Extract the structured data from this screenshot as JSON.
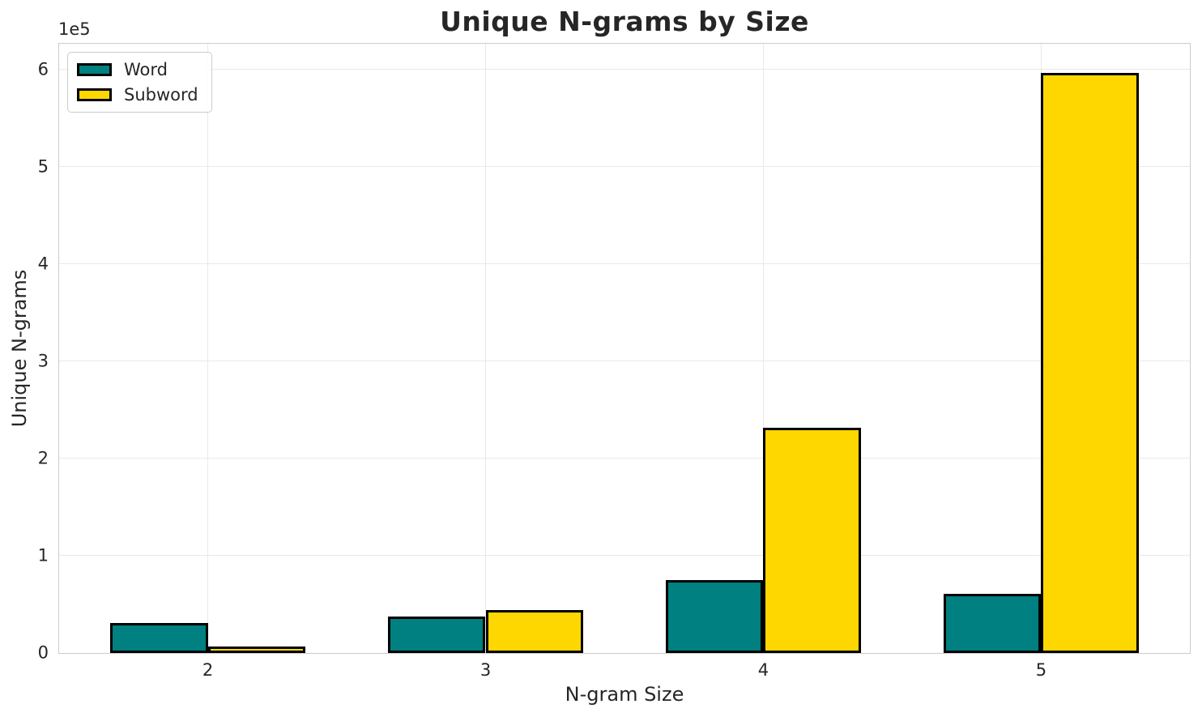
{
  "chart_data": {
    "type": "bar",
    "title": "Unique N-grams by Size",
    "xlabel": "N-gram Size",
    "ylabel": "Unique N-grams",
    "offset_label": "1e5",
    "categories": [
      "2",
      "3",
      "4",
      "5"
    ],
    "series": [
      {
        "name": "Word",
        "color": "#008080",
        "values": [
          31000,
          37500,
          75000,
          61000
        ]
      },
      {
        "name": "Subword",
        "color": "#FFD700",
        "values": [
          6500,
          44000,
          232000,
          597000
        ]
      }
    ],
    "bar_edge_color": "#000000",
    "ylim": [
      0,
      627000
    ],
    "yticks": [
      0,
      1,
      2,
      3,
      4,
      5,
      6
    ],
    "ytick_multiplier": 100000,
    "grid": true,
    "legend_position": "upper left",
    "colors": {
      "grid": "#e9e9e9",
      "spine": "#cccccc",
      "text": "#262626"
    }
  }
}
